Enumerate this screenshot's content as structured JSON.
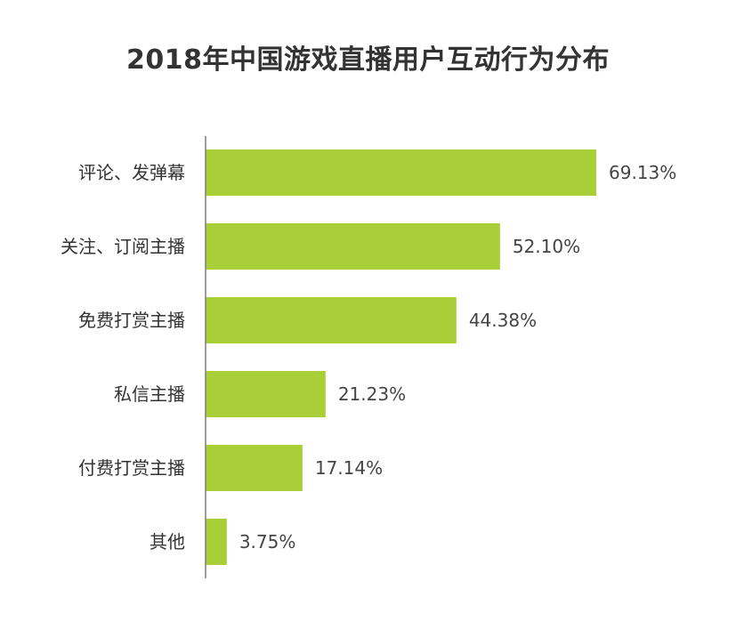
{
  "chart_data": {
    "type": "bar",
    "orientation": "horizontal",
    "title": "2018年中国游戏直播用户互动行为分布",
    "categories": [
      "评论、发弹幕",
      "关注、订阅主播",
      "免费打赏主播",
      "私信主播",
      "付费打赏主播",
      "其他"
    ],
    "values": [
      69.13,
      52.1,
      44.38,
      21.23,
      17.14,
      3.75
    ],
    "value_labels": [
      "69.13%",
      "52.10%",
      "44.38%",
      "21.23%",
      "17.14%",
      "3.75%"
    ],
    "unit": "%",
    "xlim": [
      0,
      100
    ],
    "grid": false,
    "legend": "none",
    "bar_color": "#a9cf38",
    "axis_color": "#7f7f7f"
  }
}
